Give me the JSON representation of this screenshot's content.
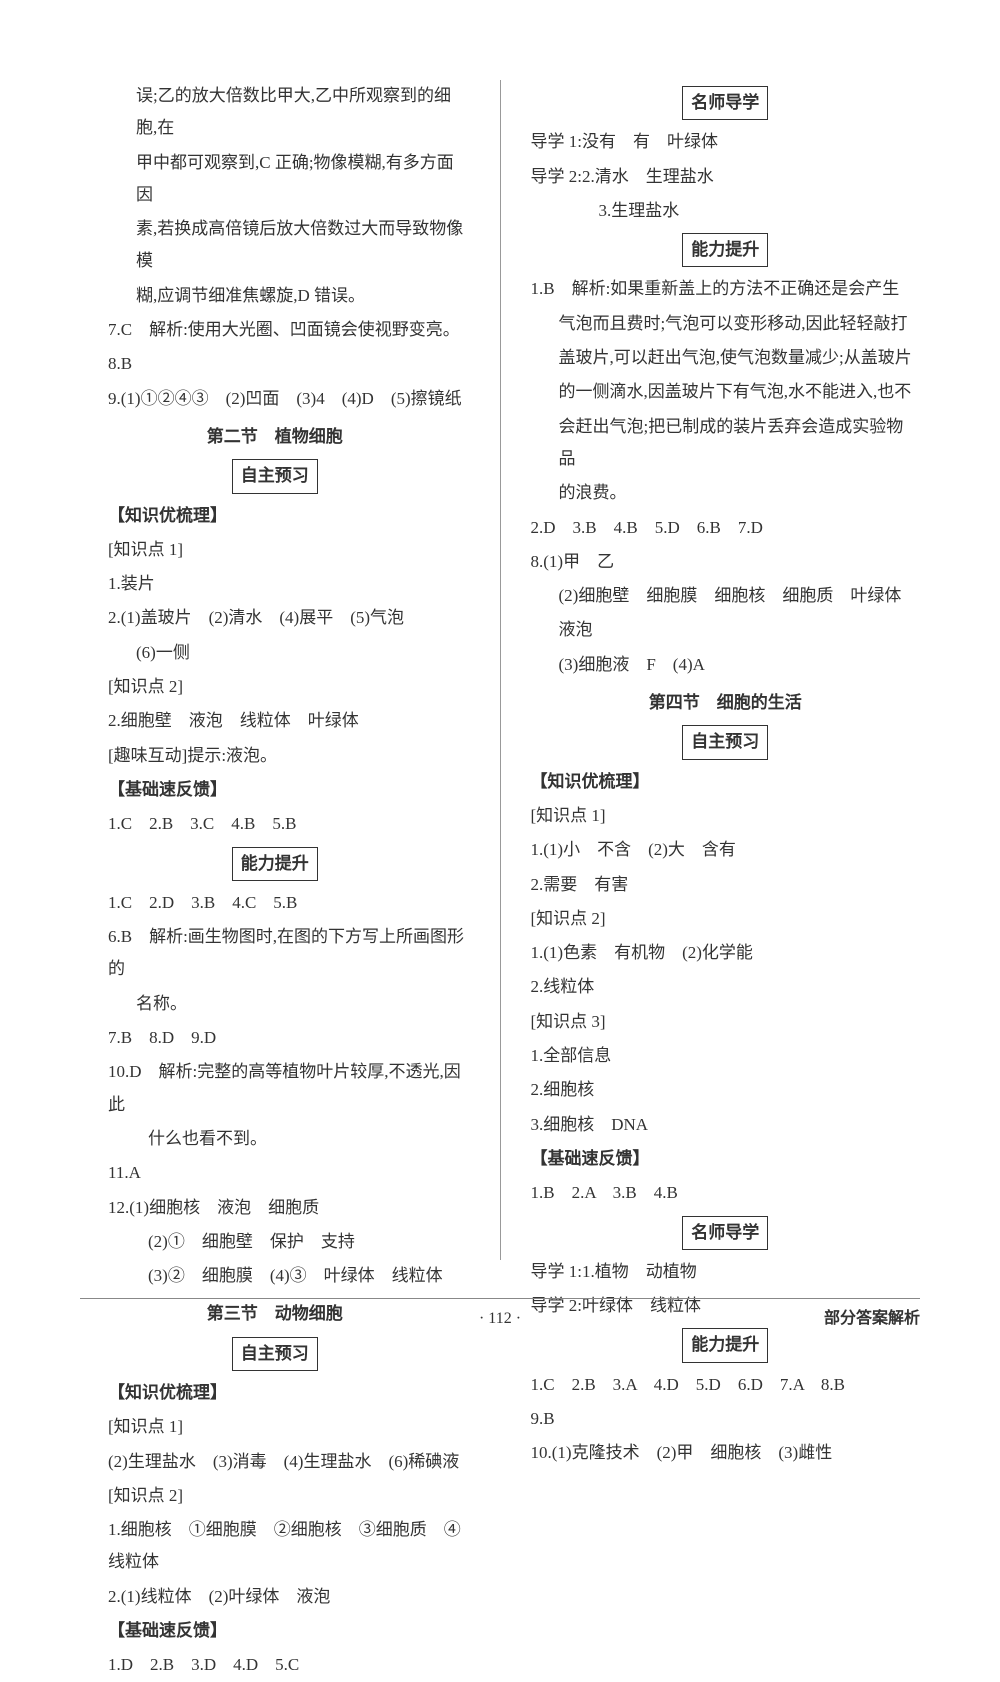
{
  "leftCol": {
    "paras": [
      {
        "cls": "line indent2",
        "text": "误;乙的放大倍数比甲大,乙中所观察到的细胞,在"
      },
      {
        "cls": "line indent2",
        "text": "甲中都可观察到,C 正确;物像模糊,有多方面因"
      },
      {
        "cls": "line indent2",
        "text": "素,若换成高倍镜后放大倍数过大而导致物像模"
      },
      {
        "cls": "line indent2",
        "text": "糊,应调节细准焦螺旋,D 错误。"
      },
      {
        "cls": "line indent1",
        "text": "7.C　解析:使用大光圈、凹面镜会使视野变亮。"
      },
      {
        "cls": "line indent1",
        "text": "8.B"
      },
      {
        "cls": "line indent1",
        "text": "9.(1)①②④③　(2)凹面　(3)4　(4)D　(5)擦镜纸"
      },
      {
        "cls": "section-title",
        "text": "第二节　植物细胞"
      },
      {
        "cls": "center",
        "boxed": true,
        "text": "自主预习"
      },
      {
        "cls": "line indent1 bold",
        "text": "【知识优梳理】"
      },
      {
        "cls": "line indent1",
        "text": "[知识点 1]"
      },
      {
        "cls": "line indent1",
        "text": "1.装片"
      },
      {
        "cls": "line indent1",
        "text": "2.(1)盖玻片　(2)清水　(4)展平　(5)气泡"
      },
      {
        "cls": "line indent2",
        "text": "(6)一侧"
      },
      {
        "cls": "line indent1",
        "text": "[知识点 2]"
      },
      {
        "cls": "line indent1",
        "text": "2.细胞壁　液泡　线粒体　叶绿体"
      },
      {
        "cls": "line indent1",
        "text": "[趣味互动]提示:液泡。"
      },
      {
        "cls": "line indent1 bold",
        "text": "【基础速反馈】"
      },
      {
        "cls": "line indent1",
        "text": "1.C　2.B　3.C　4.B　5.B"
      },
      {
        "cls": "center",
        "boxed": true,
        "text": "能力提升"
      },
      {
        "cls": "line indent1",
        "text": "1.C　2.D　3.B　4.C　5.B"
      },
      {
        "cls": "line indent1",
        "text": "6.B　解析:画生物图时,在图的下方写上所画图形的"
      },
      {
        "cls": "line indent2",
        "text": "名称。"
      },
      {
        "cls": "line indent1",
        "text": "7.B　8.D　9.D"
      },
      {
        "cls": "line indent1",
        "text": "10.D　解析:完整的高等植物叶片较厚,不透光,因此"
      },
      {
        "cls": "line indent3",
        "text": "什么也看不到。"
      },
      {
        "cls": "line indent1",
        "text": "11.A"
      },
      {
        "cls": "line indent1",
        "text": "12.(1)细胞核　液泡　细胞质"
      },
      {
        "cls": "line indent3",
        "text": "(2)①　细胞壁　保护　支持"
      },
      {
        "cls": "line indent3",
        "text": "(3)②　细胞膜　(4)③　叶绿体　线粒体"
      },
      {
        "cls": "section-title",
        "text": "第三节　动物细胞"
      },
      {
        "cls": "center",
        "boxed": true,
        "text": "自主预习"
      },
      {
        "cls": "line indent1 bold",
        "text": "【知识优梳理】"
      },
      {
        "cls": "line indent1",
        "text": "[知识点 1]"
      },
      {
        "cls": "line indent1",
        "text": "(2)生理盐水　(3)消毒　(4)生理盐水　(6)稀碘液"
      },
      {
        "cls": "line indent1",
        "text": "[知识点 2]"
      },
      {
        "cls": "line indent1",
        "text": "1.细胞核　①细胞膜　②细胞核　③细胞质　④线粒体"
      },
      {
        "cls": "line indent1",
        "text": "2.(1)线粒体　(2)叶绿体　液泡"
      },
      {
        "cls": "line indent1 bold",
        "text": "【基础速反馈】"
      },
      {
        "cls": "line indent1",
        "text": "1.D　2.B　3.D　4.D　5.C"
      }
    ]
  },
  "rightCol": {
    "paras": [
      {
        "cls": "center",
        "boxed": true,
        "text": "名师导学"
      },
      {
        "cls": "line",
        "text": "导学 1:没有　有　叶绿体"
      },
      {
        "cls": "line",
        "text": "导学 2:2.清水　生理盐水"
      },
      {
        "cls": "line indent3",
        "text": "3.生理盐水"
      },
      {
        "cls": "center",
        "boxed": true,
        "text": "能力提升"
      },
      {
        "cls": "line",
        "text": "1.B　解析:如果重新盖上的方法不正确还是会产生"
      },
      {
        "cls": "line indent1",
        "text": "气泡而且费时;气泡可以变形移动,因此轻轻敲打"
      },
      {
        "cls": "line indent1",
        "text": "盖玻片,可以赶出气泡,使气泡数量减少;从盖玻片"
      },
      {
        "cls": "line indent1",
        "text": "的一侧滴水,因盖玻片下有气泡,水不能进入,也不"
      },
      {
        "cls": "line indent1",
        "text": "会赶出气泡;把已制成的装片丢弃会造成实验物品"
      },
      {
        "cls": "line indent1",
        "text": "的浪费。"
      },
      {
        "cls": "line",
        "text": "2.D　3.B　4.B　5.D　6.B　7.D"
      },
      {
        "cls": "line",
        "text": "8.(1)甲　乙"
      },
      {
        "cls": "line indent1",
        "text": "(2)细胞壁　细胞膜　细胞核　细胞质　叶绿体"
      },
      {
        "cls": "line indent1",
        "text": "液泡"
      },
      {
        "cls": "line indent1",
        "text": "(3)细胞液　F　(4)A"
      },
      {
        "cls": "section-title",
        "text": "第四节　细胞的生活"
      },
      {
        "cls": "center",
        "boxed": true,
        "text": "自主预习"
      },
      {
        "cls": "line bold",
        "text": "【知识优梳理】"
      },
      {
        "cls": "line",
        "text": "[知识点 1]"
      },
      {
        "cls": "line",
        "text": "1.(1)小　不含　(2)大　含有"
      },
      {
        "cls": "line",
        "text": "2.需要　有害"
      },
      {
        "cls": "line",
        "text": "[知识点 2]"
      },
      {
        "cls": "line",
        "text": "1.(1)色素　有机物　(2)化学能"
      },
      {
        "cls": "line",
        "text": "2.线粒体"
      },
      {
        "cls": "line",
        "text": "[知识点 3]"
      },
      {
        "cls": "line",
        "text": "1.全部信息"
      },
      {
        "cls": "line",
        "text": "2.细胞核"
      },
      {
        "cls": "line",
        "text": "3.细胞核　DNA"
      },
      {
        "cls": "line bold",
        "text": "【基础速反馈】"
      },
      {
        "cls": "line",
        "text": "1.B　2.A　3.B　4.B"
      },
      {
        "cls": "center",
        "boxed": true,
        "text": "名师导学"
      },
      {
        "cls": "line",
        "text": "导学 1:1.植物　动植物"
      },
      {
        "cls": "line",
        "text": "导学 2:叶绿体　线粒体"
      },
      {
        "cls": "center",
        "boxed": true,
        "text": "能力提升"
      },
      {
        "cls": "line",
        "text": "1.C　2.B　3.A　4.D　5.D　6.D　7.A　8.B"
      },
      {
        "cls": "line",
        "text": "9.B"
      },
      {
        "cls": "line",
        "text": "10.(1)克隆技术　(2)甲　细胞核　(3)雌性"
      }
    ]
  },
  "footer": {
    "page": "· 112 ·",
    "right": "部分答案解析"
  }
}
